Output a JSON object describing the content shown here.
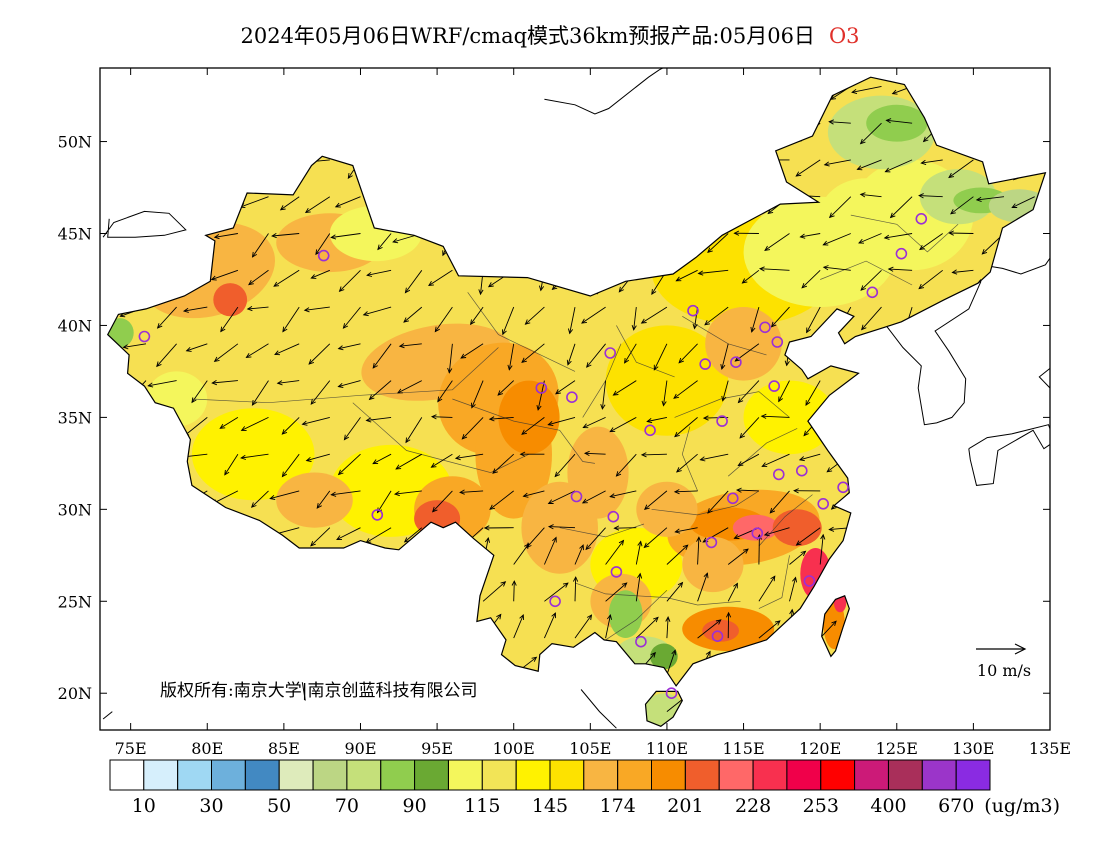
{
  "title": {
    "main": "2024年05月06日WRF/cmaq模式36km预报产品:05月06日",
    "species": "O3"
  },
  "map": {
    "lon_range": [
      73,
      135
    ],
    "lat_range": [
      18,
      54
    ],
    "lat_ticks": [
      {
        "value": 50,
        "label": "50N"
      },
      {
        "value": 45,
        "label": "45N"
      },
      {
        "value": 40,
        "label": "40N"
      },
      {
        "value": 35,
        "label": "35N"
      },
      {
        "value": 30,
        "label": "30N"
      },
      {
        "value": 25,
        "label": "25N"
      },
      {
        "value": 20,
        "label": "20N"
      }
    ],
    "lon_ticks": [
      {
        "value": 75,
        "label": "75E"
      },
      {
        "value": 80,
        "label": "80E"
      },
      {
        "value": 85,
        "label": "85E"
      },
      {
        "value": 90,
        "label": "90E"
      },
      {
        "value": 95,
        "label": "95E"
      },
      {
        "value": 100,
        "label": "100E"
      },
      {
        "value": 105,
        "label": "105E"
      },
      {
        "value": 110,
        "label": "110E"
      },
      {
        "value": 115,
        "label": "115E"
      },
      {
        "value": 120,
        "label": "120E"
      },
      {
        "value": 125,
        "label": "125E"
      },
      {
        "value": 130,
        "label": "130E"
      },
      {
        "value": 135,
        "label": "135E"
      }
    ],
    "wind_reference": {
      "label": "10 m/s",
      "speed": 10
    },
    "copyright": "版权所有:南京大学|南京创蓝科技有限公司"
  },
  "legend": {
    "unit": "(ug/m3)",
    "colors": [
      "#ffffff",
      "#d6effc",
      "#9fd8f3",
      "#6db0dc",
      "#4289c2",
      "#deebbb",
      "#bcd684",
      "#c5e07a",
      "#90cd4e",
      "#6aa933",
      "#f4f65c",
      "#f2e457",
      "#fff200",
      "#fde200",
      "#f8b542",
      "#f9a825",
      "#f78c00",
      "#f05e2c",
      "#ff6868",
      "#f8304f",
      "#f0004a",
      "#ff0000",
      "#cc1a78",
      "#a92f5a",
      "#9b35c9",
      "#8a2be2"
    ],
    "labels": [
      "10",
      "30",
      "50",
      "70",
      "90",
      "115",
      "145",
      "174",
      "201",
      "228",
      "253",
      "400",
      "670"
    ]
  },
  "stations": [
    {
      "lon": 87.6,
      "lat": 43.8
    },
    {
      "lon": 91.1,
      "lat": 29.7
    },
    {
      "lon": 101.8,
      "lat": 36.6
    },
    {
      "lon": 103.8,
      "lat": 36.1
    },
    {
      "lon": 106.3,
      "lat": 38.5
    },
    {
      "lon": 108.9,
      "lat": 34.3
    },
    {
      "lon": 111.7,
      "lat": 40.8
    },
    {
      "lon": 112.5,
      "lat": 37.9
    },
    {
      "lon": 114.5,
      "lat": 38.0
    },
    {
      "lon": 116.4,
      "lat": 39.9
    },
    {
      "lon": 117.2,
      "lat": 39.1
    },
    {
      "lon": 117.0,
      "lat": 36.7
    },
    {
      "lon": 113.6,
      "lat": 34.8
    },
    {
      "lon": 104.1,
      "lat": 30.7
    },
    {
      "lon": 106.5,
      "lat": 29.6
    },
    {
      "lon": 106.7,
      "lat": 26.6
    },
    {
      "lon": 102.7,
      "lat": 25.0
    },
    {
      "lon": 108.3,
      "lat": 22.8
    },
    {
      "lon": 110.3,
      "lat": 20.0
    },
    {
      "lon": 113.3,
      "lat": 23.1
    },
    {
      "lon": 112.9,
      "lat": 28.2
    },
    {
      "lon": 114.3,
      "lat": 30.6
    },
    {
      "lon": 115.9,
      "lat": 28.7
    },
    {
      "lon": 117.3,
      "lat": 31.9
    },
    {
      "lon": 118.8,
      "lat": 32.1
    },
    {
      "lon": 120.2,
      "lat": 30.3
    },
    {
      "lon": 121.5,
      "lat": 31.2
    },
    {
      "lon": 119.3,
      "lat": 26.1
    },
    {
      "lon": 123.4,
      "lat": 41.8
    },
    {
      "lon": 125.3,
      "lat": 43.9
    },
    {
      "lon": 126.6,
      "lat": 45.8
    },
    {
      "lon": 75.9,
      "lat": 39.4
    }
  ]
}
